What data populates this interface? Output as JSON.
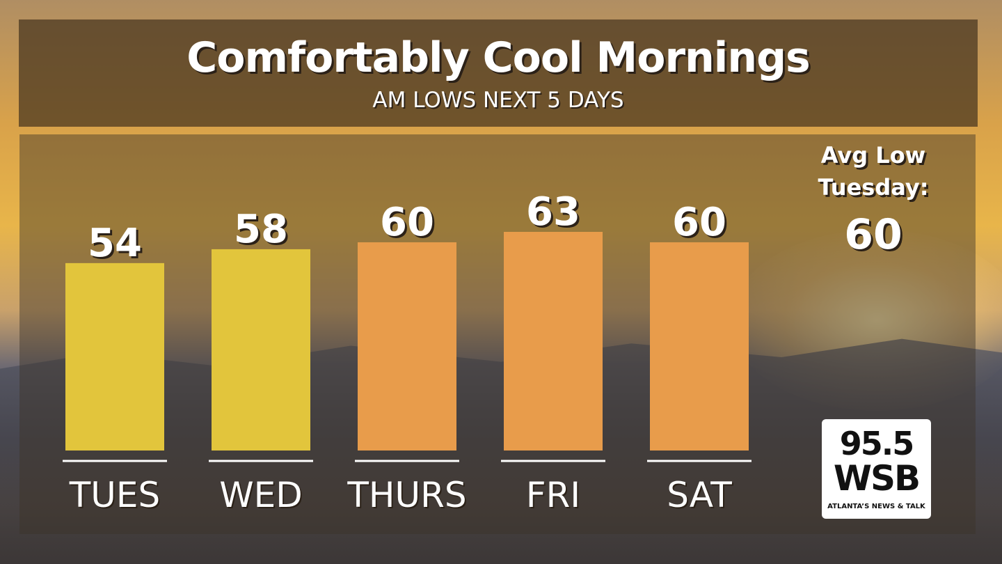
{
  "chart_data": {
    "type": "bar",
    "title": "Comfortably Cool Mornings",
    "subtitle": "AM LOWS NEXT 5 DAYS",
    "categories": [
      "TUES",
      "WED",
      "THURS",
      "FRI",
      "SAT"
    ],
    "values": [
      54,
      58,
      60,
      63,
      60
    ],
    "colors": [
      "#e2c53c",
      "#e2c53c",
      "#e89c4b",
      "#e89c4b",
      "#e89c4b"
    ],
    "annotation": {
      "label": "Avg Low Tuesday:",
      "value": 60
    }
  },
  "logo": {
    "frequency": "95.5",
    "call_sign": "WSB",
    "tagline": "ATLANTA’S NEWS & TALK"
  }
}
